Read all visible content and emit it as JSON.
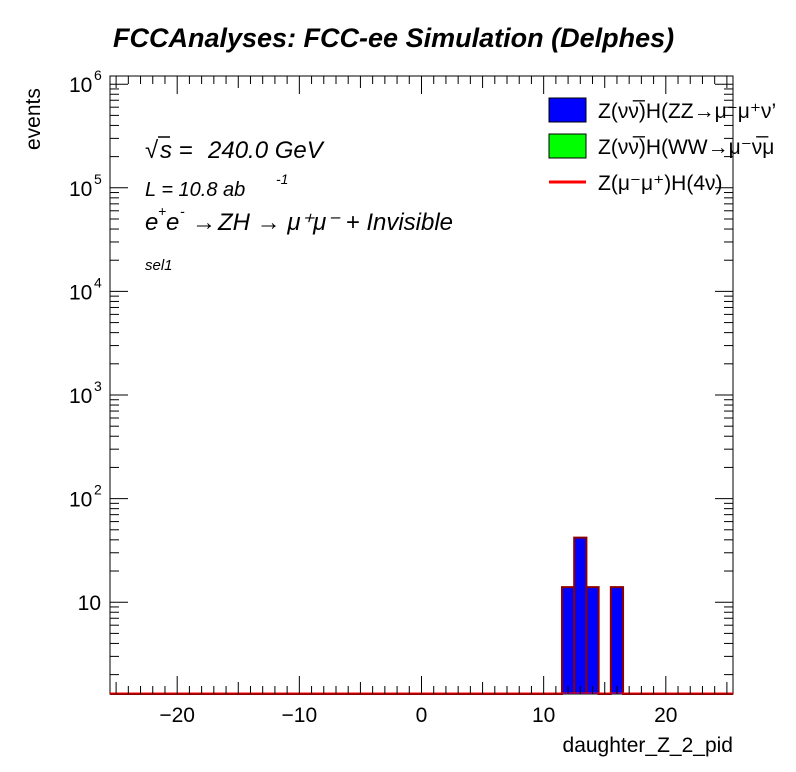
{
  "chart_data": {
    "type": "bar",
    "title": "FCCAnalyses: FCC-ee Simulation (Delphes)",
    "xlabel": "daughter_Z_2_pid",
    "ylabel": "events",
    "xlim": [
      -25.5,
      25.5
    ],
    "ylim": [
      1.3,
      1200000
    ],
    "log_y": true,
    "grid": false,
    "x_ticks": [
      -20,
      -10,
      0,
      10,
      20
    ],
    "x_tick_labels": [
      "−20",
      "−10",
      "0",
      "10",
      "20"
    ],
    "y_ticks": [
      {
        "value": 10,
        "base": "10",
        "exp": ""
      },
      {
        "value": 100,
        "base": "10",
        "exp": "2"
      },
      {
        "value": 1000,
        "base": "10",
        "exp": "3"
      },
      {
        "value": 10000,
        "base": "10",
        "exp": "4"
      },
      {
        "value": 100000,
        "base": "10",
        "exp": "5"
      },
      {
        "value": 1000000,
        "base": "10",
        "exp": "6"
      }
    ],
    "bin_width": 1,
    "series": [
      {
        "name": "Z(νν̅)H(ZZ→μ⁻μ⁺ν’",
        "kind": "stacked-fill",
        "fill": "#0000ff",
        "edge": "#8b0000",
        "bins": [
          {
            "x": 12,
            "value": 14
          },
          {
            "x": 13,
            "value": 42
          },
          {
            "x": 14,
            "value": 14
          },
          {
            "x": 16,
            "value": 14
          }
        ]
      },
      {
        "name": "Z(νν̅)H(WW→μ⁻ν̅μ",
        "kind": "stacked-fill",
        "fill": "#00ff00",
        "edge": "#8b0000",
        "bins": []
      },
      {
        "name": "Z(μ⁻μ⁺)H(4ν)",
        "kind": "line",
        "color": "#ff0000",
        "bins": []
      }
    ],
    "legend_position": "top-right",
    "annotations": {
      "sqrt_s": "240.0 GeV",
      "lumi_prefix": "L = 10.8 ab",
      "lumi_exp": "-1",
      "process": "ZH → μ⁺μ⁻ + Invisible",
      "selection": "sel1"
    }
  }
}
